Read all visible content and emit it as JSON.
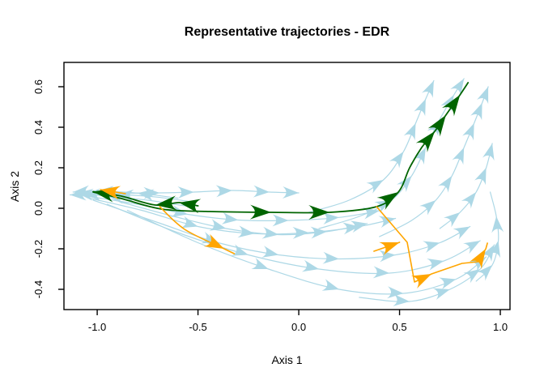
{
  "title": "Representative trajectories - EDR",
  "chart_data": {
    "type": "trajectory_field",
    "title": "Representative trajectories - EDR",
    "xlabel": "Axis 1",
    "ylabel": "Axis 2",
    "xlim": [
      -1.165,
      1.048
    ],
    "ylim": [
      -0.5,
      0.72
    ],
    "x_ticks": [
      -1.0,
      -0.5,
      0.0,
      0.5,
      1.0
    ],
    "x_tick_labels": [
      "-1.0",
      "-0.5",
      "0.0",
      "0.5",
      "1.0"
    ],
    "y_ticks": [
      -0.4,
      -0.2,
      0.0,
      0.2,
      0.4,
      0.6
    ],
    "y_tick_labels": [
      "-0.4",
      "-0.2",
      "0.0",
      "0.2",
      "0.4",
      "0.6"
    ],
    "grid": false,
    "box": true,
    "legend": "none",
    "colors": {
      "lightblue": "#ADD8E6",
      "green": "#006400",
      "orange": "#FFA500",
      "axis": "#000000",
      "background": "#FFFFFF"
    },
    "description": "Vector-field style plot of smoothed cell trajectories in a 2-D embedding (EDR). Light blue curves are background trajectories with directional arrowheads; dark green and orange are highlighted representative trajectories. Flow converges into a hub near (-1.05, 0.07): arrows near the hub point left; flows then run rightward, one branch climbing to (0.84, 0.62) and others dipping to about y = -0.42 before curving up near x = 0.95.",
    "trajectories": [
      {
        "id": "bg-hub-1",
        "color": "lightblue",
        "smooth": true,
        "width": 1.2,
        "points": [
          [
            -0.52,
            0.03
          ],
          [
            -0.7,
            0.055
          ],
          [
            -0.9,
            0.068
          ],
          [
            -1.065,
            0.068
          ],
          [
            -1.135,
            0.066
          ]
        ],
        "arrows": [
          2,
          3,
          4
        ]
      },
      {
        "id": "bg-hub-2",
        "color": "lightblue",
        "smooth": true,
        "width": 1.2,
        "points": [
          [
            -0.55,
            0.01
          ],
          [
            -0.75,
            0.04
          ],
          [
            -0.95,
            0.06
          ],
          [
            -1.1,
            0.075
          ]
        ],
        "arrows": [
          2,
          3
        ]
      },
      {
        "id": "bg-hub-3",
        "color": "lightblue",
        "smooth": true,
        "width": 1.2,
        "points": [
          [
            -0.6,
            0.05
          ],
          [
            -0.8,
            0.075
          ],
          [
            -1.0,
            0.085
          ],
          [
            -1.12,
            0.08
          ]
        ],
        "arrows": [
          1,
          2,
          3
        ]
      },
      {
        "id": "bg-flat-top",
        "color": "lightblue",
        "smooth": true,
        "width": 1.2,
        "points": [
          [
            -1.08,
            0.072
          ],
          [
            -0.69,
            0.076
          ],
          [
            -0.52,
            0.08
          ],
          [
            -0.33,
            0.088
          ],
          [
            -0.145,
            0.08
          ],
          [
            0.0,
            0.076
          ]
        ],
        "arrows": [
          1,
          2,
          3,
          4,
          5
        ]
      },
      {
        "id": "bg-mid-1",
        "color": "lightblue",
        "smooth": true,
        "width": 1.2,
        "points": [
          [
            -1.05,
            0.06
          ],
          [
            -0.8,
            0.02
          ],
          [
            -0.55,
            -0.03
          ],
          [
            -0.3,
            -0.058
          ],
          [
            -0.05,
            -0.06
          ],
          [
            0.2,
            -0.045
          ],
          [
            0.4,
            -0.012
          ]
        ],
        "arrows": [
          2,
          3,
          4,
          5,
          6
        ]
      },
      {
        "id": "bg-mid-2",
        "color": "lightblue",
        "smooth": true,
        "width": 1.2,
        "points": [
          [
            -1.04,
            0.05
          ],
          [
            -0.78,
            -0.01
          ],
          [
            -0.5,
            -0.09
          ],
          [
            -0.22,
            -0.125
          ],
          [
            0.05,
            -0.12
          ],
          [
            0.3,
            -0.09
          ],
          [
            0.48,
            -0.05
          ]
        ],
        "arrows": [
          2,
          3,
          4,
          5,
          6
        ]
      },
      {
        "id": "bg-mid-3",
        "color": "lightblue",
        "smooth": true,
        "width": 1.2,
        "points": [
          [
            -0.88,
            0.03
          ],
          [
            -0.62,
            -0.04
          ],
          [
            -0.36,
            -0.1
          ],
          [
            -0.1,
            -0.13
          ],
          [
            0.14,
            -0.115
          ],
          [
            0.34,
            -0.075
          ]
        ],
        "arrows": [
          2,
          3,
          4,
          5
        ]
      },
      {
        "id": "bg-low-1",
        "color": "lightblue",
        "smooth": true,
        "width": 1.2,
        "points": [
          [
            -1.02,
            0.04
          ],
          [
            -0.7,
            -0.07
          ],
          [
            -0.4,
            -0.17
          ],
          [
            -0.1,
            -0.23
          ],
          [
            0.2,
            -0.25
          ],
          [
            0.48,
            -0.23
          ],
          [
            0.7,
            -0.17
          ],
          [
            0.85,
            -0.09
          ]
        ],
        "arrows": [
          2,
          3,
          4,
          5,
          6,
          7
        ]
      },
      {
        "id": "bg-low-2",
        "color": "lightblue",
        "smooth": true,
        "width": 1.2,
        "points": [
          [
            -0.95,
            0.02
          ],
          [
            -0.6,
            -0.12
          ],
          [
            -0.25,
            -0.23
          ],
          [
            0.1,
            -0.3
          ],
          [
            0.45,
            -0.32
          ],
          [
            0.72,
            -0.26
          ],
          [
            0.9,
            -0.16
          ]
        ],
        "arrows": [
          2,
          3,
          4,
          5,
          6
        ]
      },
      {
        "id": "bg-low-3",
        "color": "lightblue",
        "smooth": true,
        "width": 1.2,
        "points": [
          [
            -0.85,
            -0.01
          ],
          [
            -0.5,
            -0.17
          ],
          [
            -0.15,
            -0.3
          ],
          [
            0.2,
            -0.4
          ],
          [
            0.52,
            -0.42
          ],
          [
            0.78,
            -0.35
          ],
          [
            0.93,
            -0.24
          ]
        ],
        "arrows": [
          2,
          3,
          4,
          5,
          6
        ]
      },
      {
        "id": "bg-bottom-right",
        "color": "lightblue",
        "smooth": true,
        "width": 1.2,
        "points": [
          [
            0.3,
            -0.44
          ],
          [
            0.55,
            -0.46
          ],
          [
            0.75,
            -0.4
          ],
          [
            0.9,
            -0.3
          ],
          [
            0.97,
            -0.18
          ]
        ],
        "arrows": [
          1,
          2,
          3,
          4
        ]
      },
      {
        "id": "bg-up-1",
        "color": "lightblue",
        "smooth": true,
        "width": 1.2,
        "points": [
          [
            0.1,
            -0.1
          ],
          [
            0.3,
            -0.04
          ],
          [
            0.46,
            0.04
          ],
          [
            0.56,
            0.16
          ],
          [
            0.63,
            0.3
          ],
          [
            0.7,
            0.44
          ],
          [
            0.77,
            0.56
          ],
          [
            0.82,
            0.64
          ]
        ],
        "arrows": [
          2,
          3,
          4,
          5,
          6,
          7
        ]
      },
      {
        "id": "bg-up-2",
        "color": "lightblue",
        "smooth": true,
        "width": 1.2,
        "points": [
          [
            0.05,
            -0.02
          ],
          [
            0.25,
            0.04
          ],
          [
            0.42,
            0.14
          ],
          [
            0.52,
            0.28
          ],
          [
            0.58,
            0.42
          ],
          [
            0.63,
            0.54
          ],
          [
            0.67,
            0.63
          ]
        ],
        "arrows": [
          2,
          3,
          4,
          5,
          6
        ]
      },
      {
        "id": "bg-up-3",
        "color": "lightblue",
        "smooth": true,
        "width": 1.2,
        "points": [
          [
            0.4,
            -0.14
          ],
          [
            0.56,
            -0.06
          ],
          [
            0.68,
            0.04
          ],
          [
            0.76,
            0.16
          ],
          [
            0.82,
            0.3
          ],
          [
            0.87,
            0.42
          ],
          [
            0.91,
            0.52
          ],
          [
            0.94,
            0.6
          ]
        ],
        "arrows": [
          2,
          3,
          4,
          5,
          6,
          7
        ]
      },
      {
        "id": "bg-right-edge",
        "color": "lightblue",
        "smooth": true,
        "width": 1.2,
        "points": [
          [
            0.88,
            -0.36
          ],
          [
            0.96,
            -0.28
          ],
          [
            0.99,
            -0.16
          ],
          [
            0.98,
            -0.04
          ],
          [
            0.95,
            0.08
          ]
        ],
        "arrows": [
          1,
          2,
          3
        ]
      },
      {
        "id": "bg-right-up",
        "color": "lightblue",
        "smooth": true,
        "width": 1.2,
        "points": [
          [
            0.7,
            -0.1
          ],
          [
            0.8,
            -0.02
          ],
          [
            0.88,
            0.08
          ],
          [
            0.93,
            0.2
          ],
          [
            0.96,
            0.32
          ]
        ],
        "arrows": [
          1,
          2,
          3,
          4
        ]
      },
      {
        "id": "rep-green-main",
        "color": "green",
        "smooth": true,
        "width": 1.8,
        "points": [
          [
            -1.02,
            0.08
          ],
          [
            -0.88,
            0.048
          ],
          [
            -0.68,
            -0.004
          ],
          [
            -0.44,
            -0.016
          ],
          [
            -0.137,
            -0.02
          ],
          [
            0.153,
            -0.02
          ],
          [
            0.386,
            0.008
          ],
          [
            0.494,
            0.08
          ],
          [
            0.55,
            0.2
          ],
          [
            0.61,
            0.3
          ],
          [
            0.675,
            0.38
          ],
          [
            0.73,
            0.46
          ],
          [
            0.8,
            0.56
          ],
          [
            0.84,
            0.62
          ]
        ],
        "arrows": [
          4,
          5,
          7,
          10,
          11,
          12
        ]
      },
      {
        "id": "rep-green-to-hub",
        "color": "green",
        "smooth": true,
        "width": 1.8,
        "points": [
          [
            -0.5,
            0.012
          ],
          [
            -0.594,
            0.028
          ],
          [
            -0.711,
            0.016
          ],
          [
            -0.88,
            0.06
          ],
          [
            -1.02,
            0.082
          ]
        ],
        "arrows": [
          1,
          2,
          4
        ]
      },
      {
        "id": "rep-orange-hub",
        "color": "orange",
        "smooth": false,
        "width": 1.6,
        "points": [
          [
            -0.86,
            0.072
          ],
          [
            -0.984,
            0.092
          ]
        ],
        "arrows": [
          1
        ]
      },
      {
        "id": "rep-orange-diag",
        "color": "orange",
        "smooth": true,
        "width": 1.6,
        "points": [
          [
            -0.69,
            0.008
          ],
          [
            -0.566,
            -0.104
          ],
          [
            -0.37,
            -0.2
          ],
          [
            -0.32,
            -0.224
          ]
        ],
        "arrows": [
          2
        ]
      },
      {
        "id": "rep-orange-branch",
        "color": "orange",
        "smooth": false,
        "width": 1.6,
        "points": [
          [
            0.386,
            0.008
          ],
          [
            0.538,
            -0.168
          ],
          [
            0.574,
            -0.364
          ],
          [
            0.659,
            -0.324
          ],
          [
            0.81,
            -0.272
          ],
          [
            0.888,
            -0.264
          ],
          [
            0.928,
            -0.2
          ],
          [
            0.936,
            -0.172
          ]
        ],
        "arrows": [
          3,
          6
        ]
      },
      {
        "id": "rep-orange-short",
        "color": "orange",
        "smooth": false,
        "width": 1.6,
        "points": [
          [
            0.373,
            -0.212
          ],
          [
            0.5,
            -0.168
          ]
        ],
        "arrows": [
          1
        ]
      }
    ]
  }
}
